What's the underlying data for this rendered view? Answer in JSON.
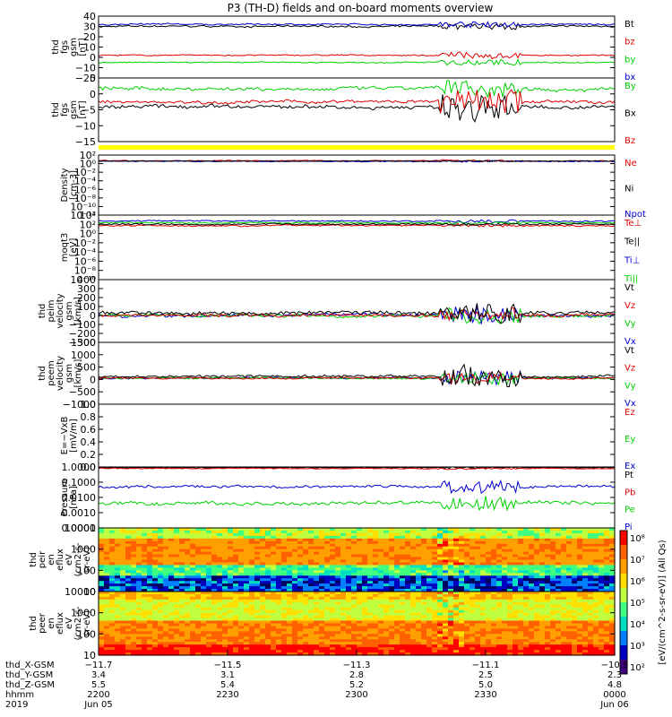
{
  "title": "P3 (TH-D) fields and on-board moments overview",
  "colors": {
    "black": "#000000",
    "red": "#e00000",
    "green": "#00d000",
    "blue": "#0000d0",
    "yellow": "#ffff00",
    "background": "#ffffff"
  },
  "chart_data": [
    {
      "type": "line",
      "ylabel": [
        "thd",
        "fgs",
        "gsm",
        "[nT]"
      ],
      "ylim": [
        -20,
        40
      ],
      "ticks": [
        "40",
        "30",
        "20",
        "10",
        "0",
        "−10",
        "−20"
      ],
      "legend": [
        {
          "name": "Bt",
          "color": "black"
        },
        {
          "name": "bz",
          "color": "red"
        },
        {
          "name": "by",
          "color": "green"
        },
        {
          "name": "bx",
          "color": "blue"
        }
      ]
    },
    {
      "type": "line",
      "ylabel": [
        "thd",
        "fgs",
        "gsm",
        "[nT]"
      ],
      "ylim": [
        -17,
        7
      ],
      "ticks": [
        "5",
        "0",
        "−5",
        "−10",
        "−15"
      ],
      "legend": [
        {
          "name": "By",
          "color": "green"
        },
        {
          "name": "Bx",
          "color": "black"
        },
        {
          "name": "Bz",
          "color": "red"
        }
      ]
    },
    {
      "type": "line",
      "ylabel": [
        "Density",
        "[cm-3]"
      ],
      "ylim_log": [
        -14,
        2
      ],
      "ticks": [
        "10²",
        "10⁰",
        "10⁻²",
        "10⁻⁴",
        "10⁻⁶",
        "10⁻⁸",
        "10⁻¹⁰",
        "10⁻¹²"
      ],
      "legend": [
        {
          "name": "Ne",
          "color": "red"
        },
        {
          "name": "Ni",
          "color": "black"
        },
        {
          "name": "Npot",
          "color": "blue"
        }
      ]
    },
    {
      "type": "line",
      "ylabel": [
        "moqt3",
        "[eV]"
      ],
      "ylim_log": [
        -11,
        4
      ],
      "ticks": [
        "10⁴",
        "10²",
        "10⁰",
        "10⁻²",
        "10⁻⁴",
        "10⁻⁶",
        "10⁻⁸",
        "10⁻¹⁰"
      ],
      "legend": [
        {
          "name": "Te⊥",
          "color": "red"
        },
        {
          "name": "Te||",
          "color": "black"
        },
        {
          "name": "Ti⊥",
          "color": "blue"
        },
        {
          "name": "Ti||",
          "color": "green"
        }
      ]
    },
    {
      "type": "line",
      "ylabel": [
        "thd",
        "peim",
        "velocity",
        "gsm",
        "[km/s]"
      ],
      "ylim": [
        -300,
        400
      ],
      "ticks": [
        "400",
        "300",
        "200",
        "100",
        "0",
        "−100",
        "−200",
        "−300"
      ],
      "legend": [
        {
          "name": "Vt",
          "color": "black"
        },
        {
          "name": "Vz",
          "color": "red"
        },
        {
          "name": "Vy",
          "color": "green"
        },
        {
          "name": "Vx",
          "color": "blue"
        }
      ]
    },
    {
      "type": "line",
      "ylabel": [
        "thd",
        "peem",
        "velocity",
        "gsm",
        "[km/s]"
      ],
      "ylim": [
        -1100,
        1500
      ],
      "ticks": [
        "1500",
        "1000",
        "500",
        "0",
        "−500",
        "−1000"
      ],
      "legend": [
        {
          "name": "Vt",
          "color": "black"
        },
        {
          "name": "Vz",
          "color": "red"
        },
        {
          "name": "Vy",
          "color": "green"
        },
        {
          "name": "Vx",
          "color": "blue"
        }
      ]
    },
    {
      "type": "line",
      "ylabel": [
        "E=−VxB",
        "[mV/m]"
      ],
      "ylim": [
        0,
        1
      ],
      "ticks": [
        "1.0",
        "0.8",
        "0.6",
        "0.4",
        "0.2",
        "0.0"
      ],
      "legend": [
        {
          "name": "Ez",
          "color": "red"
        },
        {
          "name": "Ey",
          "color": "green"
        },
        {
          "name": "Ex",
          "color": "blue"
        }
      ]
    },
    {
      "type": "line",
      "ylabel": [
        "Pressure",
        "[nPa]"
      ],
      "ylim_log": [
        -4,
        0
      ],
      "ticks": [
        "1.0000",
        "0.1000",
        "0.0100",
        "0.0010",
        "0.0001"
      ],
      "legend": [
        {
          "name": "Pt",
          "color": "black"
        },
        {
          "name": "Pb",
          "color": "red"
        },
        {
          "name": "Pe",
          "color": "green"
        },
        {
          "name": "Pi",
          "color": "blue"
        }
      ]
    },
    {
      "type": "heatmap",
      "ylabel": [
        "thd",
        "peir",
        "en",
        "eflux",
        "eV",
        "(cm2-s-",
        "sr-eV)"
      ],
      "ylim_log": [
        0.8,
        4.3
      ],
      "ticks": [
        "10000",
        "1000",
        "100",
        "10"
      ]
    },
    {
      "type": "heatmap",
      "ylabel": [
        "thd",
        "peer",
        "en",
        "eflux",
        "eV",
        "(cm2-s-",
        "sr-eV)"
      ],
      "ylim_log": [
        0.8,
        4.3
      ],
      "ticks": [
        "10000",
        "1000",
        "100",
        "10"
      ]
    }
  ],
  "colorbar": {
    "ticks": [
      "10⁸",
      "10⁷",
      "10⁶",
      "10⁵",
      "10⁴",
      "10³",
      "10²"
    ],
    "label": "[eV/(cm^2-s-sr-eV)] (All Qs)"
  },
  "bottom_axis": {
    "row_labels": [
      "thd_X-GSM",
      "thd_Y-GSM",
      "thd_Z-GSM",
      "hhmm",
      "2019"
    ],
    "columns": [
      [
        "−11.7",
        "3.4",
        "5.5",
        "2200",
        "Jun 05"
      ],
      [
        "−11.5",
        "3.1",
        "5.4",
        "2230",
        ""
      ],
      [
        "−11.3",
        "2.8",
        "5.2",
        "2300",
        ""
      ],
      [
        "−11.1",
        "2.5",
        "5.0",
        "2330",
        ""
      ],
      [
        "−10.9",
        "2.3",
        "4.8",
        "0000",
        "Jun 06"
      ]
    ]
  }
}
